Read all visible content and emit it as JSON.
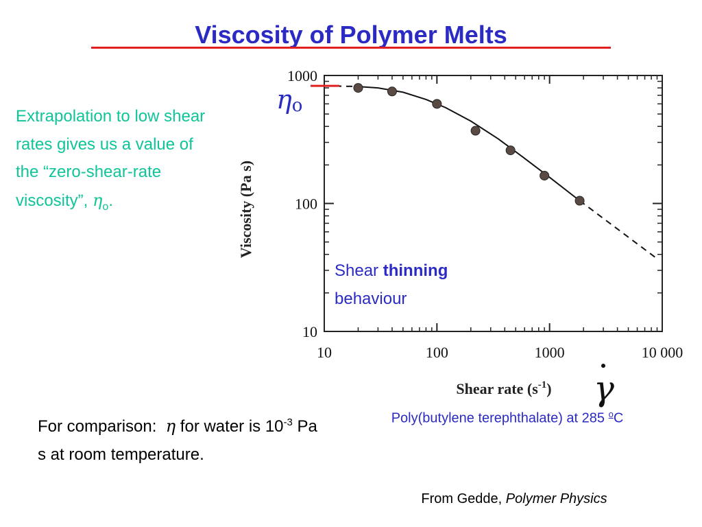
{
  "title": "Viscosity of Polymer Melts",
  "colors": {
    "title": "#2b2bc4",
    "rule": "#e02020",
    "note": "#10c49a",
    "annotation": "#2b2bc4",
    "points": "#5a4a44"
  },
  "extrapolation_note": {
    "text": "Extrapolation to low shear rates gives us a value of the “zero-shear-rate viscosity”,",
    "symbol": "η",
    "subscript": "o",
    "end": "."
  },
  "comparison_note": {
    "prefix": "For comparison:",
    "symbol": "η",
    "middle": "for water is 10",
    "exponent": "-3",
    "suffix": "Pa s at room temperature."
  },
  "caption": {
    "text": "Poly(butylene terephthalate) at 285",
    "degree": "o",
    "unit": "C"
  },
  "source": {
    "prefix": "From Gedde,",
    "book": "Polymer Physics"
  },
  "chart_data": {
    "type": "scatter",
    "x_scale": "log",
    "y_scale": "log",
    "xlim": [
      10,
      10000
    ],
    "ylim": [
      10,
      1000
    ],
    "xticks": [
      10,
      100,
      1000,
      10000
    ],
    "xtick_labels": [
      "10",
      "100",
      "1000",
      "10 000"
    ],
    "yticks": [
      10,
      100,
      1000
    ],
    "ytick_labels": [
      "10",
      "100",
      "1000"
    ],
    "xlabel": "Shear rate (s",
    "xlabel_sup": "-1",
    "xlabel_end": ")",
    "ylabel": "Viscosity (Pa  s)",
    "x_symbol": "γ",
    "zero_shear_label": "η",
    "zero_shear_sub": "o",
    "zero_shear_value": 830,
    "points": [
      {
        "x": 20,
        "y": 800
      },
      {
        "x": 40,
        "y": 750
      },
      {
        "x": 100,
        "y": 600
      },
      {
        "x": 220,
        "y": 370
      },
      {
        "x": 450,
        "y": 260
      },
      {
        "x": 900,
        "y": 165
      },
      {
        "x": 1850,
        "y": 105
      }
    ],
    "fit_curve": [
      {
        "x": 20,
        "y": 820
      },
      {
        "x": 30,
        "y": 800
      },
      {
        "x": 50,
        "y": 740
      },
      {
        "x": 80,
        "y": 650
      },
      {
        "x": 120,
        "y": 560
      },
      {
        "x": 200,
        "y": 440
      },
      {
        "x": 350,
        "y": 320
      },
      {
        "x": 600,
        "y": 225
      },
      {
        "x": 1000,
        "y": 160
      },
      {
        "x": 1850,
        "y": 105
      }
    ],
    "extrapolation_low": [
      {
        "x": 10,
        "y": 830
      },
      {
        "x": 20,
        "y": 820
      }
    ],
    "extrapolation_high": [
      {
        "x": 1850,
        "y": 105
      },
      {
        "x": 9000,
        "y": 37
      }
    ],
    "annotation": {
      "normal": "Shear",
      "bold": "thinning",
      "line2": "behaviour"
    }
  }
}
